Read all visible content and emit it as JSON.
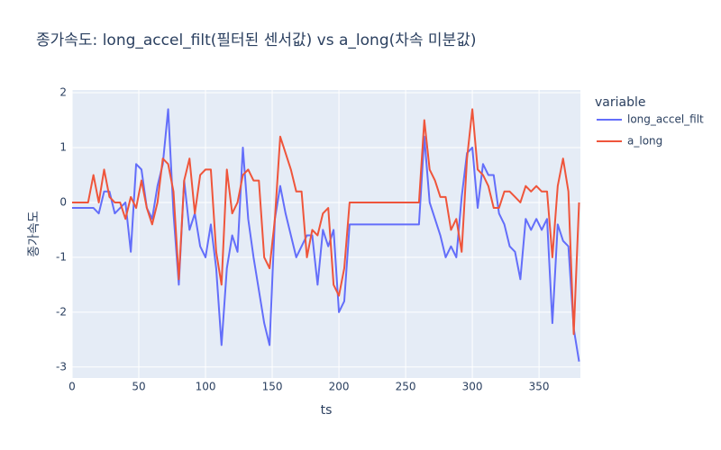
{
  "chart_data": {
    "type": "line",
    "title": "종가속도: long_accel_filt(필터된 센서값) vs a_long(차속 미분값)",
    "x_label": "ts",
    "y_label": "종가속도",
    "legend_title": "variable",
    "x": [
      0,
      4,
      8,
      12,
      16,
      20,
      24,
      28,
      32,
      36,
      40,
      44,
      48,
      52,
      56,
      60,
      64,
      68,
      72,
      76,
      80,
      84,
      88,
      92,
      96,
      100,
      104,
      108,
      112,
      116,
      120,
      124,
      128,
      132,
      136,
      140,
      144,
      148,
      152,
      156,
      160,
      164,
      168,
      172,
      176,
      180,
      184,
      188,
      192,
      196,
      200,
      204,
      208,
      212,
      216,
      220,
      224,
      228,
      232,
      236,
      240,
      244,
      248,
      252,
      256,
      260,
      264,
      268,
      272,
      276,
      280,
      284,
      288,
      292,
      296,
      300,
      304,
      308,
      312,
      316,
      320,
      324,
      328,
      332,
      336,
      340,
      344,
      348,
      352,
      356,
      360,
      364,
      368,
      372,
      376,
      380
    ],
    "series": [
      {
        "name": "long_accel_filt",
        "color": "#636efa",
        "values": [
          -0.1,
          -0.1,
          -0.1,
          -0.1,
          -0.1,
          -0.2,
          0.2,
          0.2,
          -0.2,
          -0.1,
          0.0,
          -0.9,
          0.7,
          0.6,
          -0.1,
          -0.3,
          0.3,
          0.7,
          1.7,
          -0.2,
          -1.5,
          0.4,
          -0.5,
          -0.2,
          -0.8,
          -1.0,
          -0.4,
          -1.2,
          -2.6,
          -1.2,
          -0.6,
          -0.9,
          1.0,
          -0.3,
          -1.0,
          -1.6,
          -2.2,
          -2.6,
          -0.3,
          0.3,
          -0.2,
          -0.6,
          -1.0,
          -0.8,
          -0.6,
          -0.6,
          -1.5,
          -0.5,
          -0.8,
          -0.5,
          -2.0,
          -1.8,
          -0.4,
          -0.4,
          -0.4,
          -0.4,
          -0.4,
          -0.4,
          -0.4,
          -0.4,
          -0.4,
          -0.4,
          -0.4,
          -0.4,
          -0.4,
          -0.4,
          1.2,
          0.0,
          -0.3,
          -0.6,
          -1.0,
          -0.8,
          -1.0,
          0.1,
          0.9,
          1.0,
          -0.1,
          0.7,
          0.5,
          0.5,
          -0.2,
          -0.4,
          -0.8,
          -0.9,
          -1.4,
          -0.3,
          -0.5,
          -0.3,
          -0.5,
          -0.3,
          -2.2,
          -0.4,
          -0.7,
          -0.8,
          -2.3,
          -2.9
        ]
      },
      {
        "name": "a_long",
        "color": "#ef553b",
        "values": [
          0,
          0,
          0,
          0,
          0.5,
          0,
          0.6,
          0.1,
          0,
          0,
          -0.3,
          0.1,
          -0.1,
          0.4,
          -0.1,
          -0.4,
          0,
          0.8,
          0.7,
          0.2,
          -1.4,
          0.4,
          0.8,
          -0.2,
          0.5,
          0.6,
          0.6,
          -0.9,
          -1.5,
          0.6,
          -0.2,
          0,
          0.5,
          0.6,
          0.4,
          0.4,
          -1.0,
          -1.2,
          -0.3,
          1.2,
          0.9,
          0.6,
          0.2,
          0.2,
          -1.0,
          -0.5,
          -0.6,
          -0.2,
          -0.1,
          -1.5,
          -1.7,
          -1.2,
          0,
          0,
          0,
          0,
          0,
          0,
          0,
          0,
          0,
          0,
          0,
          0,
          0,
          0,
          1.5,
          0.6,
          0.4,
          0.1,
          0.1,
          -0.5,
          -0.3,
          -0.9,
          0.8,
          1.7,
          0.6,
          0.5,
          0.3,
          -0.1,
          -0.1,
          0.2,
          0.2,
          0.1,
          0,
          0.3,
          0.2,
          0.3,
          0.2,
          0.2,
          -1.0,
          0.3,
          0.8,
          0.2,
          -2.4,
          0
        ]
      }
    ],
    "xlim": [
      0,
      381
    ],
    "xticks": [
      0,
      50,
      100,
      150,
      200,
      250,
      300,
      350
    ],
    "ylim": [
      -3.2,
      2.05
    ],
    "yticks": [
      -3,
      -2,
      -1,
      0,
      1,
      2
    ],
    "grid": true
  }
}
